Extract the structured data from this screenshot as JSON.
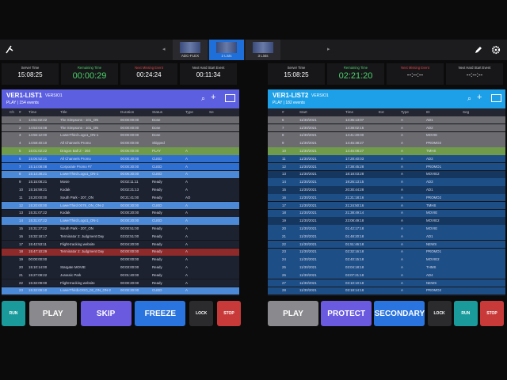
{
  "top_bar": {
    "layouts": [
      "ADC-FLEX",
      "2 Lists",
      "3 Lists"
    ]
  },
  "panels": [
    {
      "timers": [
        {
          "label": "Server Time",
          "value": "15:08:25"
        },
        {
          "label": "Remaining Time",
          "value": "00:00:29"
        },
        {
          "label": "Next Missing Event",
          "value": "00:24:24"
        },
        {
          "label": "Next Hard Start Event",
          "value": "00:11:34"
        }
      ],
      "list_name": "VER1-LIST1",
      "version": "VERSIO1",
      "status_line": "PLAY | 154 events",
      "columns": [
        "Ch",
        "#",
        "Time",
        "Title",
        "Duration",
        "Status",
        "Type",
        "Se"
      ],
      "rows": [
        [
          "1",
          "14:51:02:22",
          "The Simpsons - 101_ON",
          "00:00:00:00",
          "Done",
          ""
        ],
        [
          "2",
          "14:53:04:08",
          "The Simpsons - 101_ON",
          "00:00:00:00",
          "Done",
          ""
        ],
        [
          "3",
          "14:56:12:00",
          "LowerThird Logo1_ON-1",
          "00:00:00:00",
          "Done",
          ""
        ],
        [
          "4",
          "14:58:40:10",
          "All Channels Promo",
          "00:00:00:00",
          "Skipped",
          ""
        ],
        [
          "5",
          "15:01:02:22",
          "Dragon Ball Z - 260",
          "00:06:00:00",
          "PLAY",
          "A"
        ],
        [
          "6",
          "15:06:52:21",
          "All Channels Promo",
          "00:00:30:00",
          "CUED",
          "A"
        ],
        [
          "7",
          "15:14:08:08",
          "Corporate Promo #7",
          "00:00:30:00",
          "CUED",
          "A"
        ],
        [
          "8",
          "15:14:38:21",
          "LowerThird Logo1_ON-1",
          "00:06:30:00",
          "CUED",
          "A"
        ],
        [
          "9",
          "15:15:08:21",
          "Movie",
          "00:02:11:11",
          "Ready",
          "A"
        ],
        [
          "10",
          "15:16:59:21",
          "Kodak",
          "00:02:21:13",
          "Ready",
          "A"
        ],
        [
          "11",
          "15:20:00:00",
          "South Park - 207_ON",
          "00:21:41:00",
          "Ready",
          "AO"
        ],
        [
          "12",
          "15:20:00:00",
          "LowerThird 0078_ON_ON-2",
          "00:00:30:00",
          "CUED",
          "A"
        ],
        [
          "13",
          "15:31:07:22",
          "Kodak",
          "00:00:20:00",
          "Ready",
          "A"
        ],
        [
          "14",
          "15:31:07:22",
          "LowerThird Logo1_ON-1",
          "00:00:20:00",
          "CUED",
          "A"
        ],
        [
          "15",
          "15:31:27:22",
          "South Park - 207_ON",
          "00:00:51:00",
          "Ready",
          "A"
        ],
        [
          "16",
          "15:32:18:17",
          "Terminator 2: Judgment Day",
          "03:02:51:00",
          "Ready",
          "A"
        ],
        [
          "17",
          "15:42:53:11",
          "Flight-tracking website",
          "00:04:20:00",
          "Ready",
          "A"
        ],
        [
          "18",
          "15:47:10:29",
          "Terminator 2: Judgment Day",
          "00:00:00:00",
          "Ready",
          "A"
        ],
        [
          "19",
          "00:00:00:00",
          "",
          "00:00:00:00",
          "Ready",
          "A"
        ],
        [
          "20",
          "15:10:14:00",
          "Stargate MOVIE",
          "00:03:00:00",
          "Ready",
          "A"
        ],
        [
          "21",
          "15:27:08:22",
          "Jurassic Park",
          "00:01:40:00",
          "Ready",
          "A"
        ],
        [
          "22",
          "15:32:09:00",
          "Flight-tracking website",
          "00:00:20:00",
          "Ready",
          "A"
        ],
        [
          "23",
          "15:32:09:10",
          "LowerThirdLOGO_02_ON_ON-2",
          "00:00:30:00",
          "CUED",
          "A"
        ]
      ],
      "buttons": [
        "RUN",
        "PLAY",
        "SKIP",
        "FREEZE",
        "LOCK",
        "STOP"
      ]
    },
    {
      "timers": [
        {
          "label": "Server Time",
          "value": "15:08:25"
        },
        {
          "label": "Remaining Time",
          "value": "02:21:20"
        },
        {
          "label": "Next Missing Event",
          "value": "--:--:--"
        },
        {
          "label": "Next Hard Start Event",
          "value": "--:--:--"
        }
      ],
      "list_name": "VER1-LIST2",
      "version": "VERSIO1",
      "status_line": "PLAY | 182 events",
      "columns": [
        "#",
        "Start",
        "Time",
        "Ext",
        "Type",
        "ID",
        "Seg"
      ],
      "rows": [
        [
          "6",
          "11/30/2021",
          "14:35:13:07",
          "A",
          "AD1"
        ],
        [
          "7",
          "11/30/2021",
          "14:38:02:15",
          "A",
          "AD2"
        ],
        [
          "8",
          "11/30/2021",
          "14:41:20:00",
          "A",
          "MOVIE"
        ],
        [
          "9",
          "11/30/2021",
          "14:45:38:27",
          "A",
          "PROMO2"
        ],
        [
          "10",
          "11/30/2021",
          "14:46:08:27",
          "A",
          "TMHS"
        ],
        [
          "11",
          "11/30/2021",
          "17:28:40:03",
          "A",
          "AD3"
        ],
        [
          "12",
          "11/30/2021",
          "17:38:45:28",
          "A",
          "PROMO1"
        ],
        [
          "13",
          "11/30/2021",
          "18:18:03:28",
          "A",
          "MOVIE2"
        ],
        [
          "14",
          "11/30/2021",
          "19:26:13:15",
          "A",
          "AD3"
        ],
        [
          "15",
          "11/30/2021",
          "20:30:44:28",
          "A",
          "AD1"
        ],
        [
          "16",
          "11/30/2021",
          "21:21:18:16",
          "A",
          "PROMO2"
        ],
        [
          "17",
          "11/30/2021",
          "21:24:50:16",
          "A",
          "TMHS"
        ],
        [
          "18",
          "11/30/2021",
          "21:38:49:14",
          "A",
          "MOVIE"
        ],
        [
          "19",
          "11/30/2021",
          "23:08:49:18",
          "A",
          "MOVIE2"
        ],
        [
          "20",
          "11/30/2021",
          "01:42:17:18",
          "A",
          "MOVIE"
        ],
        [
          "21",
          "11/30/2021",
          "01:48:20:18",
          "A",
          "AD1"
        ],
        [
          "22",
          "11/30/2021",
          "01:51:46:18",
          "A",
          "NEWS"
        ],
        [
          "23",
          "11/30/2021",
          "02:32:16:18",
          "A",
          "PROMO1"
        ],
        [
          "24",
          "11/30/2021",
          "02:40:15:18",
          "A",
          "MOVIE2"
        ],
        [
          "25",
          "11/30/2021",
          "03:04:18:18",
          "A",
          "THMS"
        ],
        [
          "26",
          "11/30/2021",
          "03:07:21:18",
          "A",
          "AD4"
        ],
        [
          "27",
          "11/30/2021",
          "03:10:10:18",
          "A",
          "NEWS"
        ],
        [
          "28",
          "11/30/2021",
          "03:18:14:18",
          "A",
          "PROMO2"
        ]
      ],
      "buttons": [
        "PLAY",
        "PROTECT",
        "SECONDARY",
        "LOCK",
        "RUN",
        "STOP"
      ]
    }
  ]
}
